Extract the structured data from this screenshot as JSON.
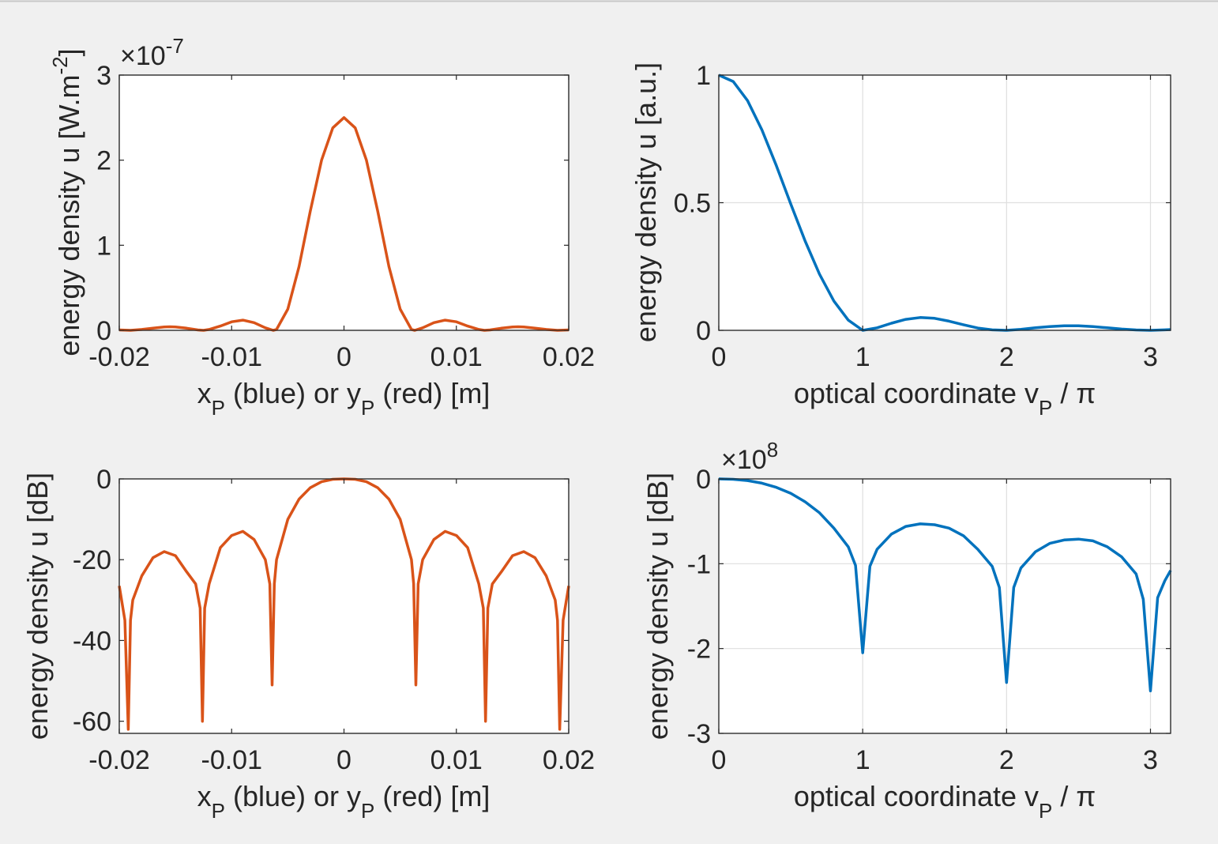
{
  "colors": {
    "blue": "#0072BD",
    "red": "#D95319",
    "background": "#f0f0f0"
  },
  "chart_data": [
    {
      "type": "line",
      "id": "a",
      "xlabel_parts": [
        "x",
        "P",
        " (blue)  or y",
        "P",
        " (red)  [m]"
      ],
      "ylabel_parts": [
        "energy density  u  [W.m",
        "-2",
        "]"
      ],
      "exponent": {
        "base": "×10",
        "power": "-7"
      },
      "xlim": [
        -0.02,
        0.02
      ],
      "ylim": [
        0,
        3
      ],
      "xticks": [
        -0.02,
        -0.01,
        0,
        0.01,
        0.02
      ],
      "xtick_labels": [
        "-0.02",
        "-0.01",
        "0",
        "0.01",
        "0.02"
      ],
      "yticks": [
        0,
        1,
        2,
        3
      ],
      "ytick_labels": [
        "0",
        "1",
        "2",
        "3"
      ],
      "grid": false,
      "series": [
        {
          "color": "#D95319",
          "x": [
            -0.02,
            -0.019,
            -0.018,
            -0.017,
            -0.016,
            -0.0155,
            -0.015,
            -0.014,
            -0.013,
            -0.0125,
            -0.012,
            -0.011,
            -0.01,
            -0.009,
            -0.008,
            -0.007,
            -0.0063,
            -0.006,
            -0.005,
            -0.004,
            -0.003,
            -0.002,
            -0.001,
            0,
            0.001,
            0.002,
            0.003,
            0.004,
            0.005,
            0.006,
            0.0063,
            0.007,
            0.008,
            0.009,
            0.01,
            0.011,
            0.012,
            0.0125,
            0.013,
            0.014,
            0.015,
            0.0155,
            0.016,
            0.017,
            0.018,
            0.019,
            0.02
          ],
          "y": [
            0.005,
            0.0,
            0.01,
            0.025,
            0.04,
            0.042,
            0.04,
            0.025,
            0.005,
            0.0,
            0.01,
            0.05,
            0.1,
            0.12,
            0.09,
            0.03,
            0.0,
            0.01,
            0.25,
            0.75,
            1.4,
            2.0,
            2.38,
            2.5,
            2.38,
            2.0,
            1.4,
            0.75,
            0.25,
            0.01,
            0.0,
            0.03,
            0.09,
            0.12,
            0.1,
            0.05,
            0.01,
            0.0,
            0.005,
            0.025,
            0.04,
            0.042,
            0.04,
            0.025,
            0.01,
            0.0,
            0.005
          ]
        }
      ]
    },
    {
      "type": "line",
      "id": "b",
      "xlabel_parts": [
        "optical coordinate  v",
        "P",
        " / π"
      ],
      "ylabel_parts": [
        "energy density  u  [a.u.]"
      ],
      "xlim": [
        0,
        3.14
      ],
      "ylim": [
        0,
        1
      ],
      "xticks": [
        0,
        1,
        2,
        3
      ],
      "xtick_labels": [
        "0",
        "1",
        "2",
        "3"
      ],
      "yticks": [
        0,
        0.5,
        1
      ],
      "ytick_labels": [
        "0",
        "0.5",
        "1"
      ],
      "grid": true,
      "series": [
        {
          "color": "#0072BD",
          "x": [
            0,
            0.1,
            0.2,
            0.3,
            0.4,
            0.5,
            0.6,
            0.7,
            0.8,
            0.9,
            1.0,
            1.1,
            1.2,
            1.3,
            1.4,
            1.5,
            1.6,
            1.7,
            1.8,
            1.9,
            2.0,
            2.1,
            2.2,
            2.3,
            2.4,
            2.5,
            2.6,
            2.7,
            2.8,
            2.9,
            3.0,
            3.1,
            3.14
          ],
          "y": [
            1.0,
            0.975,
            0.9,
            0.785,
            0.645,
            0.495,
            0.35,
            0.22,
            0.115,
            0.04,
            0.0,
            0.01,
            0.028,
            0.043,
            0.05,
            0.047,
            0.036,
            0.022,
            0.009,
            0.002,
            0.0,
            0.004,
            0.01,
            0.015,
            0.018,
            0.018,
            0.015,
            0.01,
            0.005,
            0.0015,
            0.0,
            0.002,
            0.003
          ]
        }
      ]
    },
    {
      "type": "line",
      "id": "c",
      "xlabel_parts": [
        "x",
        "P",
        " (blue)  or y",
        "P",
        " (red)  [m]"
      ],
      "ylabel_parts": [
        "energy density  u  [dB]"
      ],
      "xlim": [
        -0.02,
        0.02
      ],
      "ylim": [
        -63,
        0
      ],
      "xticks": [
        -0.02,
        -0.01,
        0,
        0.01,
        0.02
      ],
      "xtick_labels": [
        "-0.02",
        "-0.01",
        "0",
        "0.01",
        "0.02"
      ],
      "yticks": [
        0,
        -20,
        -40,
        -60
      ],
      "ytick_labels": [
        "0",
        "-20",
        "-40",
        "-60"
      ],
      "grid": false,
      "series": [
        {
          "color": "#D95319",
          "x": [
            -0.02,
            -0.0195,
            -0.0192,
            -0.019,
            -0.0188,
            -0.018,
            -0.017,
            -0.016,
            -0.015,
            -0.014,
            -0.0132,
            -0.0128,
            -0.0126,
            -0.0124,
            -0.012,
            -0.011,
            -0.01,
            -0.009,
            -0.008,
            -0.007,
            -0.0066,
            -0.0064,
            -0.0062,
            -0.006,
            -0.005,
            -0.004,
            -0.003,
            -0.002,
            -0.001,
            0,
            0.001,
            0.002,
            0.003,
            0.004,
            0.005,
            0.006,
            0.0062,
            0.0064,
            0.0066,
            0.007,
            0.008,
            0.009,
            0.01,
            0.011,
            0.012,
            0.0124,
            0.0126,
            0.0128,
            0.0132,
            0.014,
            0.015,
            0.016,
            0.017,
            0.018,
            0.0188,
            0.019,
            0.0192,
            0.0195,
            0.02
          ],
          "y": [
            -26.5,
            -35,
            -62,
            -35,
            -30,
            -24,
            -19.5,
            -18,
            -19,
            -23,
            -26,
            -32,
            -60,
            -32,
            -26,
            -17,
            -14,
            -13,
            -15,
            -20,
            -26,
            -51,
            -26,
            -20,
            -10,
            -5,
            -2.2,
            -0.7,
            -0.1,
            0,
            -0.1,
            -0.7,
            -2.2,
            -5,
            -10,
            -20,
            -26,
            -51,
            -26,
            -20,
            -15,
            -13,
            -14,
            -17,
            -26,
            -32,
            -60,
            -32,
            -26,
            -23,
            -19,
            -18,
            -19.5,
            -24,
            -30,
            -35,
            -62,
            -35,
            -26.5
          ]
        }
      ]
    },
    {
      "type": "line",
      "id": "d",
      "xlabel_parts": [
        "optical coordinate   v",
        "P",
        " / π"
      ],
      "ylabel_parts": [
        "energy density  u  [dB]"
      ],
      "exponent": {
        "base": "×10",
        "power": "8"
      },
      "xlim": [
        0,
        3.14
      ],
      "ylim": [
        -3,
        0
      ],
      "xticks": [
        0,
        1,
        2,
        3
      ],
      "xtick_labels": [
        "0",
        "1",
        "2",
        "3"
      ],
      "yticks": [
        0,
        -1,
        -2,
        -3
      ],
      "ytick_labels": [
        "0",
        "-1",
        "-2",
        "-3"
      ],
      "grid": true,
      "series": [
        {
          "color": "#0072BD",
          "x": [
            0,
            0.1,
            0.2,
            0.3,
            0.4,
            0.5,
            0.6,
            0.7,
            0.8,
            0.9,
            0.95,
            1.0,
            1.05,
            1.1,
            1.2,
            1.3,
            1.4,
            1.5,
            1.6,
            1.7,
            1.8,
            1.9,
            1.95,
            2.0,
            2.05,
            2.1,
            2.2,
            2.3,
            2.4,
            2.5,
            2.6,
            2.7,
            2.8,
            2.9,
            2.95,
            3.0,
            3.05,
            3.1,
            3.14
          ],
          "y": [
            0,
            -0.005,
            -0.02,
            -0.05,
            -0.1,
            -0.17,
            -0.27,
            -0.4,
            -0.58,
            -0.8,
            -1.02,
            -2.05,
            -1.03,
            -0.83,
            -0.65,
            -0.56,
            -0.53,
            -0.54,
            -0.58,
            -0.67,
            -0.83,
            -1.03,
            -1.28,
            -2.4,
            -1.28,
            -1.05,
            -0.86,
            -0.76,
            -0.72,
            -0.71,
            -0.73,
            -0.8,
            -0.92,
            -1.12,
            -1.42,
            -2.5,
            -1.4,
            -1.2,
            -1.08
          ]
        }
      ]
    }
  ]
}
